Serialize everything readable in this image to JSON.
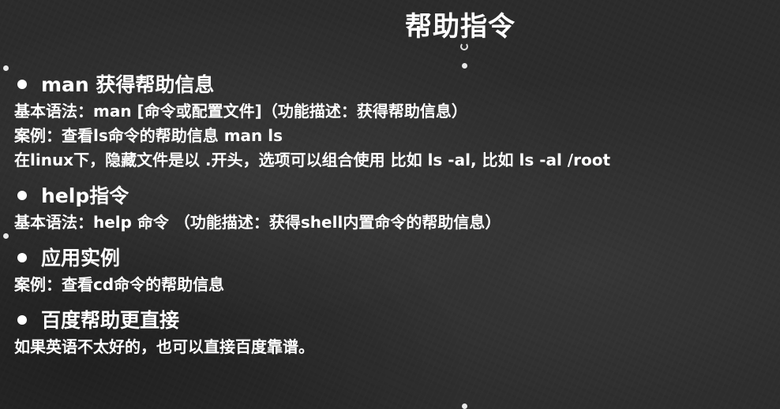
{
  "slide": {
    "title": "帮助指令",
    "sections": [
      {
        "heading": "man 获得帮助信息",
        "lines": [
          "基本语法：man [命令或配置文件]（功能描述：获得帮助信息）",
          "案例：查看ls命令的帮助信息   man ls",
          "在linux下，隐藏文件是以 .开头，选项可以组合使用  比如 ls -al, 比如 ls  -al /root"
        ]
      },
      {
        "heading": "help指令",
        "lines": [
          "基本语法：help 命令 （功能描述：获得shell内置命令的帮助信息）"
        ]
      },
      {
        "heading": "应用实例",
        "lines": [
          "案例：查看cd命令的帮助信息"
        ]
      },
      {
        "heading": "百度帮助更直接",
        "lines": [
          "如果英语不太好的，也可以直接百度靠谱。"
        ]
      }
    ]
  },
  "colors": {
    "background": "#2c2c2c",
    "text": "#ffffff"
  }
}
